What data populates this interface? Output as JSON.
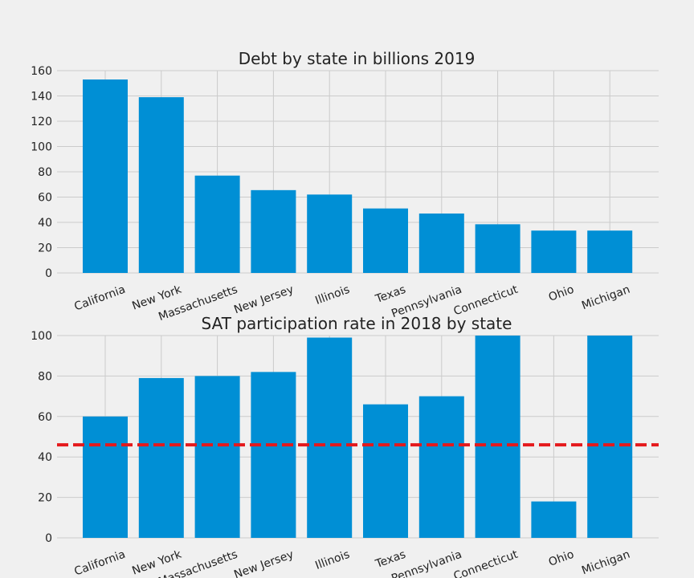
{
  "colors": {
    "background": "#f0f0f0",
    "bar": "#008fd5",
    "grid": "#cbcbcb",
    "reference_line": "#e5191c"
  },
  "chart_data": [
    {
      "type": "bar",
      "title": "Debt by state in billions 2019",
      "categories": [
        "California",
        "New York",
        "Massachusetts",
        "New Jersey",
        "Illinois",
        "Texas",
        "Pennsylvania",
        "Connecticut",
        "Ohio",
        "Michigan"
      ],
      "values": [
        153,
        139,
        77,
        65.5,
        62,
        51,
        47,
        38.5,
        33.5,
        33.5
      ],
      "ylim": [
        0,
        160
      ],
      "yticks": [
        0,
        20,
        40,
        60,
        80,
        100,
        120,
        140,
        160
      ],
      "grid": true,
      "xlabel": "",
      "ylabel": ""
    },
    {
      "type": "bar",
      "title": "SAT participation rate in 2018 by state",
      "categories": [
        "California",
        "New York",
        "Massachusetts",
        "New Jersey",
        "Illinois",
        "Texas",
        "Pennsylvania",
        "Connecticut",
        "Ohio",
        "Michigan"
      ],
      "values": [
        60,
        79,
        80,
        82,
        99,
        66,
        70,
        100,
        18,
        100
      ],
      "ylim": [
        0,
        100
      ],
      "yticks": [
        0,
        20,
        40,
        60,
        80,
        100
      ],
      "reference_line": {
        "y": 46,
        "style": "dashed"
      },
      "grid": true,
      "xlabel": "",
      "ylabel": ""
    }
  ]
}
